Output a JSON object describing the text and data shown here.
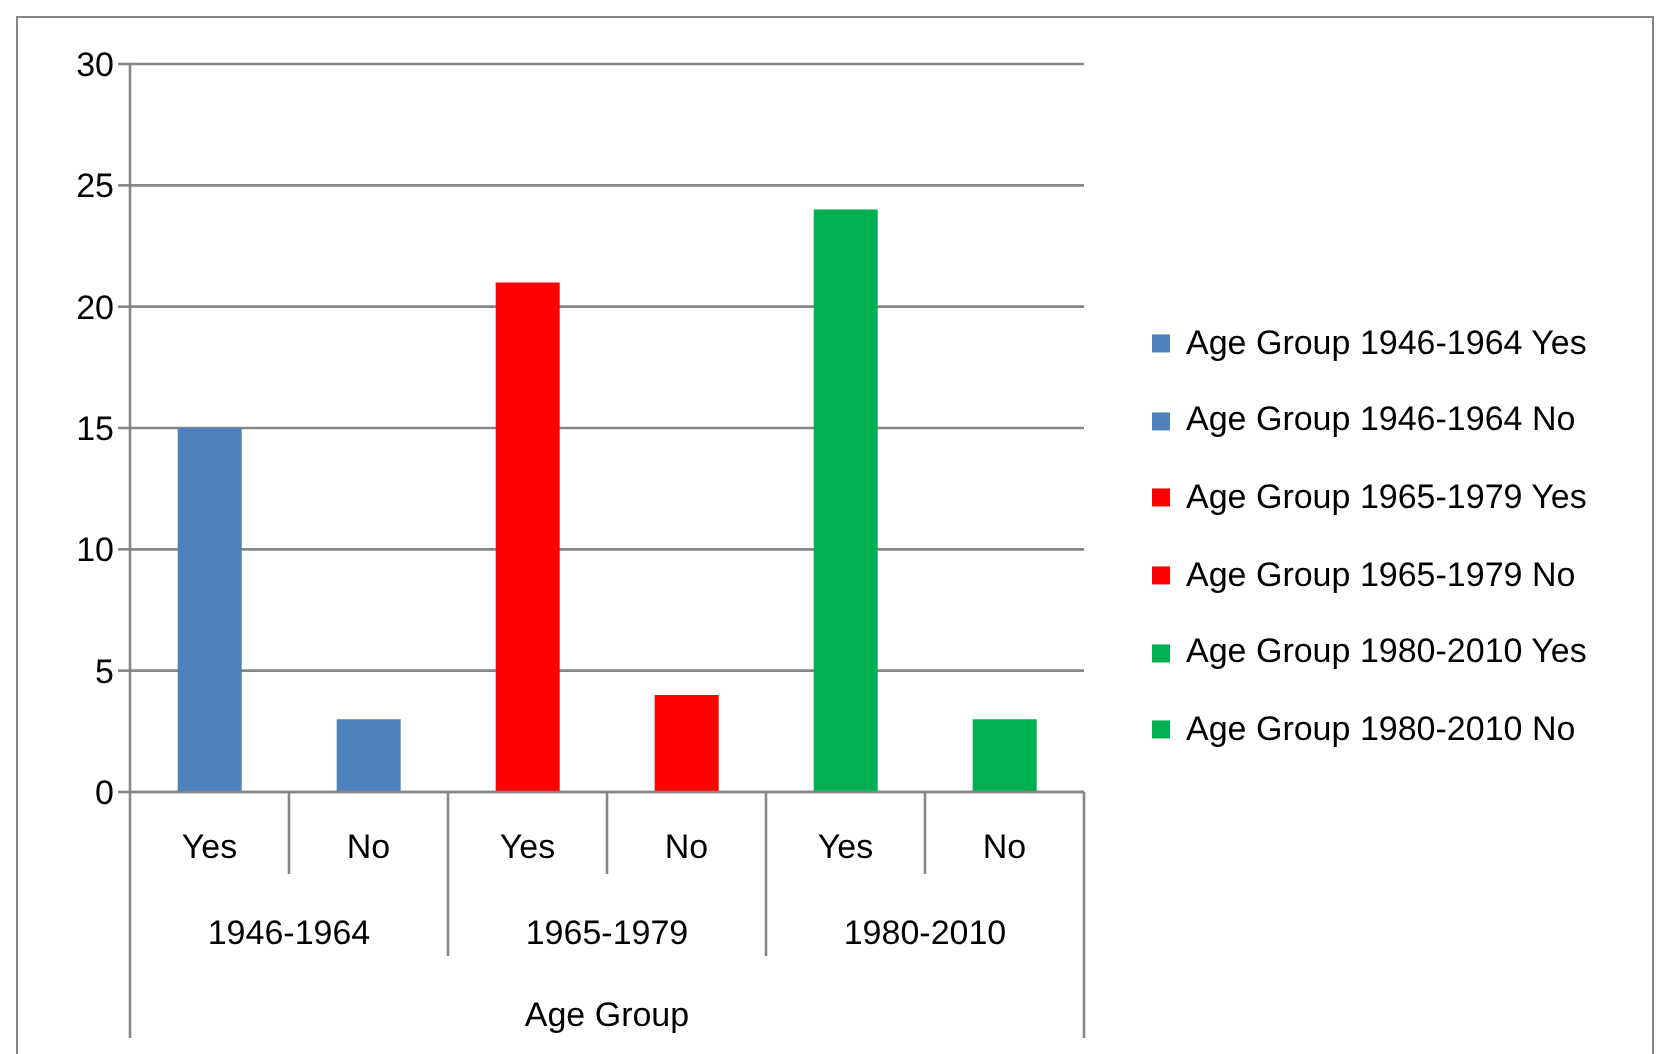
{
  "chart_data": {
    "type": "bar",
    "xlabel": "Age Group",
    "categories": [
      "Yes",
      "No",
      "Yes",
      "No",
      "Yes",
      "No"
    ],
    "series": [
      {
        "name": "Age Group 1946-1964 Yes",
        "color": "#4f81bd",
        "values": [
          15,
          null,
          null,
          null,
          null,
          null
        ]
      },
      {
        "name": "Age Group 1946-1964 No",
        "color": "#4f81bd",
        "values": [
          null,
          3,
          null,
          null,
          null,
          null
        ]
      },
      {
        "name": "Age Group 1965-1979 Yes",
        "color": "#ff0000",
        "values": [
          null,
          null,
          21,
          null,
          null,
          null
        ]
      },
      {
        "name": "Age Group 1965-1979 No",
        "color": "#ff0000",
        "values": [
          null,
          null,
          null,
          4,
          null,
          null
        ]
      },
      {
        "name": "Age Group 1980-2010 Yes",
        "color": "#00b050",
        "values": [
          null,
          null,
          null,
          null,
          24,
          null
        ]
      },
      {
        "name": "Age Group 1980-2010 No",
        "color": "#00b050",
        "values": [
          null,
          null,
          null,
          null,
          null,
          3
        ]
      }
    ],
    "stacked": true,
    "ylim": [
      0,
      30
    ],
    "yticks": [
      0,
      5,
      10,
      15,
      20,
      25,
      30
    ],
    "grid": "y",
    "legend": "right",
    "annotations": [
      "1946-1964",
      "1965-1979",
      "1980-2010"
    ]
  }
}
